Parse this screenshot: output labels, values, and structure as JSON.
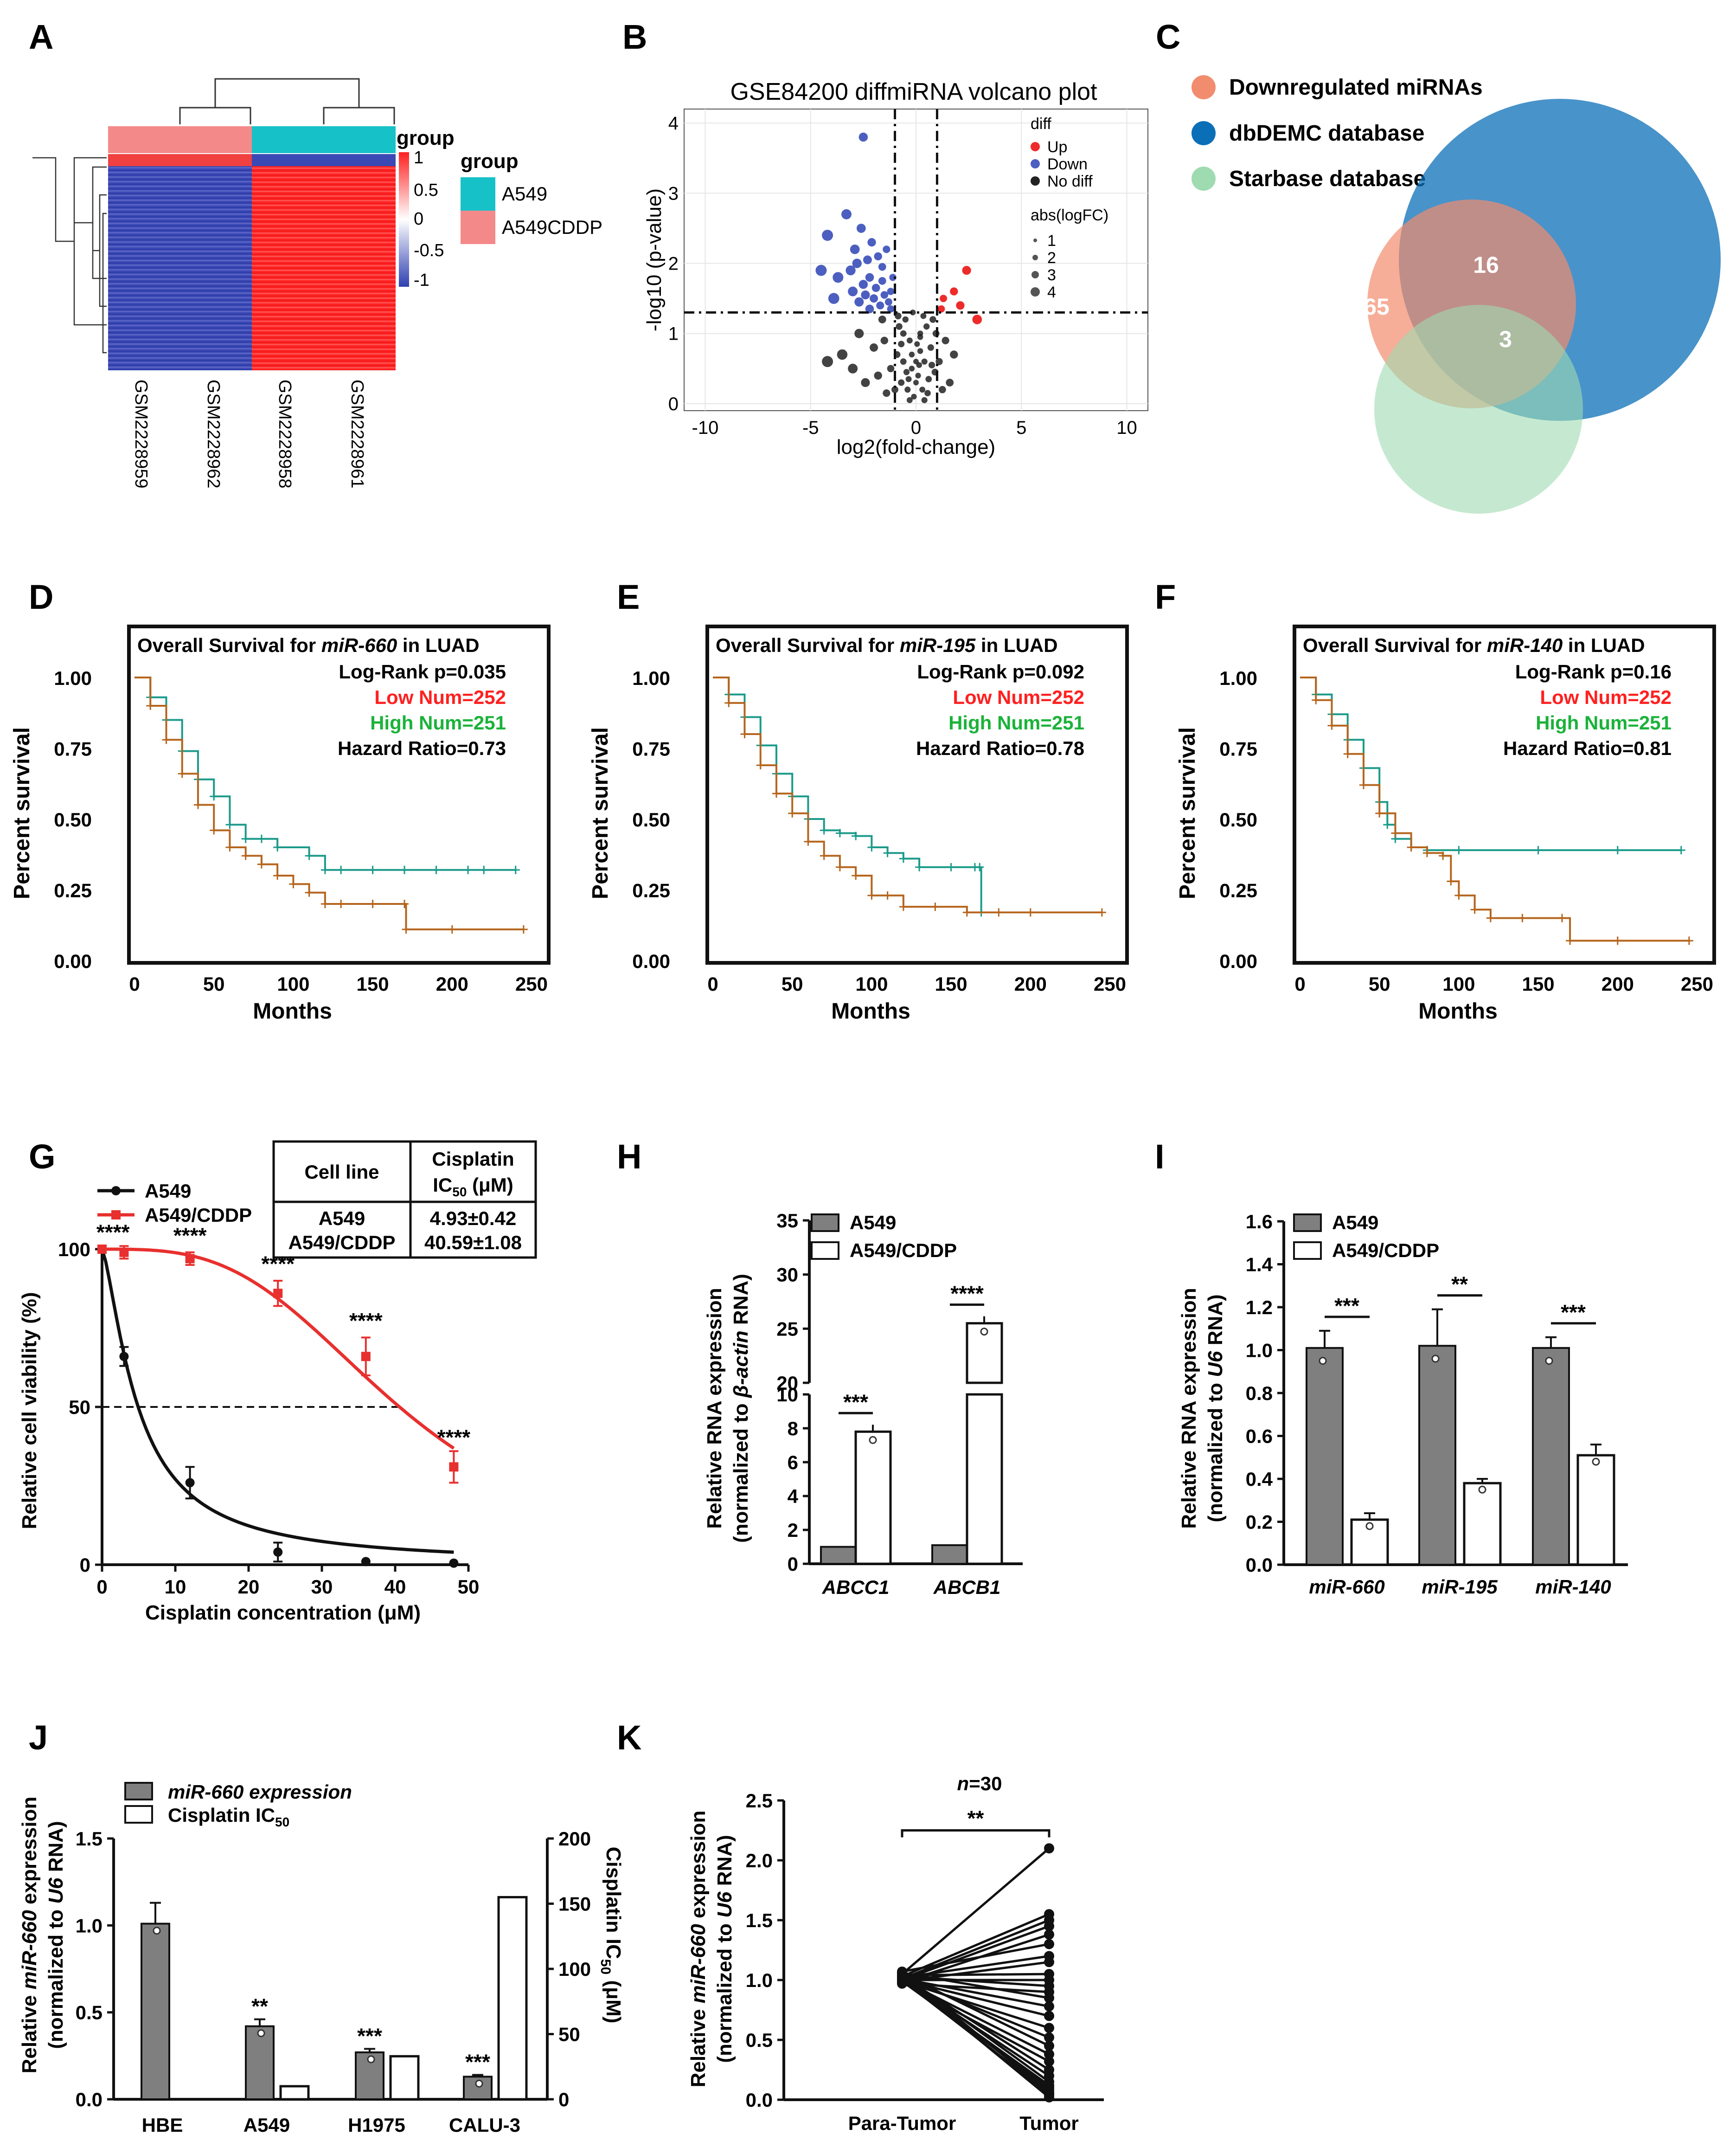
{
  "colors": {
    "a549": "#17c1c8",
    "cddp": "#f4898a",
    "heat_red": "#ff2020",
    "heat_blue": "#2e3fb0",
    "up": "#ee2b2b",
    "down": "#4c5fc0",
    "nodiff": "#222222",
    "venn_down": "#f28c6e",
    "venn_dbdemc": "#0b6fb8",
    "venn_star": "#9fdbb0",
    "km_low": "#b5651d",
    "km_high": "#1b9a8a",
    "low_text": "#ff2020",
    "high_text": "#1bb23a",
    "bar_grey": "#7f7f7f",
    "red_curve": "#e8302e"
  },
  "panels": {
    "A": "A",
    "B": "B",
    "C": "C",
    "D": "D",
    "E": "E",
    "F": "F",
    "G": "G",
    "H": "H",
    "I": "I",
    "J": "J",
    "K": "K"
  },
  "panel_a": {
    "legend_title": "group",
    "scale_title": "group",
    "scale_ticks": [
      "1",
      "0.5",
      "0",
      "-0.5",
      "-1"
    ],
    "groups": [
      "A549",
      "A549CDDP"
    ],
    "samples": [
      "GSM2228959",
      "GSM2228962",
      "GSM2228958",
      "GSM2228961"
    ]
  },
  "chart_data": [
    {
      "id": "B",
      "type": "scatter",
      "title": "GSE84200 diffmiRNA volcano plot",
      "xlabel": "log2(fold-change)",
      "ylabel": "-log10 (p-value)",
      "xlim": [
        -11,
        11
      ],
      "ylim": [
        -0.1,
        4.2
      ],
      "xticks": [
        "-10",
        "-5",
        "0",
        "5",
        "10"
      ],
      "yticks": [
        "0",
        "1",
        "2",
        "3",
        "4"
      ],
      "legend_diff_title": "diff",
      "legend_diff": [
        "Up",
        "Down",
        "No diff"
      ],
      "legend_size_title": "abs(logFC)",
      "legend_size": [
        "1",
        "2",
        "3",
        "4"
      ],
      "thresholds": {
        "x": [
          -1,
          1
        ],
        "y": 1.3
      },
      "up": [
        [
          1.3,
          1.5
        ],
        [
          1.8,
          1.6
        ],
        [
          2.4,
          1.9
        ],
        [
          2.1,
          1.4
        ],
        [
          2.9,
          1.2
        ],
        [
          1.2,
          1.35
        ]
      ],
      "down": [
        [
          -2.5,
          3.8
        ],
        [
          -3.3,
          2.7
        ],
        [
          -2.6,
          2.5
        ],
        [
          -4.2,
          2.4
        ],
        [
          -2.1,
          2.3
        ],
        [
          -1.8,
          2.1
        ],
        [
          -2.8,
          2.0
        ],
        [
          -3.1,
          1.9
        ],
        [
          -4.5,
          1.9
        ],
        [
          -3.7,
          1.8
        ],
        [
          -2.2,
          1.8
        ],
        [
          -1.6,
          1.75
        ],
        [
          -2.5,
          1.7
        ],
        [
          -1.9,
          1.65
        ],
        [
          -3.0,
          1.6
        ],
        [
          -2.4,
          1.55
        ],
        [
          -1.5,
          1.55
        ],
        [
          -2.0,
          1.5
        ],
        [
          -1.3,
          1.45
        ],
        [
          -2.7,
          1.45
        ],
        [
          -1.7,
          1.4
        ],
        [
          -1.2,
          1.35
        ],
        [
          -2.2,
          1.35
        ],
        [
          -3.9,
          1.5
        ],
        [
          -1.1,
          1.8
        ],
        [
          -1.4,
          2.2
        ],
        [
          -2.9,
          2.2
        ],
        [
          -1.6,
          1.95
        ],
        [
          -2.3,
          2.05
        ],
        [
          -1.2,
          1.6
        ]
      ],
      "nodiff": [
        [
          -4.2,
          0.6
        ],
        [
          -3.0,
          0.5
        ],
        [
          -2.0,
          0.8
        ],
        [
          -1.5,
          0.9
        ],
        [
          -0.8,
          1.1
        ],
        [
          -0.5,
          1.2
        ],
        [
          -0.3,
          0.9
        ],
        [
          0.2,
          1.0
        ],
        [
          0.5,
          1.1
        ],
        [
          0.8,
          1.2
        ],
        [
          -0.9,
          0.7
        ],
        [
          -0.6,
          0.6
        ],
        [
          -0.2,
          0.5
        ],
        [
          0.1,
          0.4
        ],
        [
          0.4,
          0.6
        ],
        [
          0.7,
          0.8
        ],
        [
          -0.7,
          0.3
        ],
        [
          -0.4,
          0.2
        ],
        [
          0.3,
          0.2
        ],
        [
          0.6,
          0.35
        ],
        [
          -1.2,
          0.5
        ],
        [
          1.1,
          0.6
        ],
        [
          1.4,
          0.9
        ],
        [
          -1.8,
          0.4
        ],
        [
          -2.4,
          0.3
        ],
        [
          -0.1,
          0.1
        ],
        [
          0.0,
          0.3
        ],
        [
          -0.2,
          0.7
        ],
        [
          0.2,
          0.75
        ],
        [
          -0.6,
          1.0
        ],
        [
          0.9,
          0.45
        ],
        [
          1.6,
          0.3
        ],
        [
          -1.0,
          0.2
        ],
        [
          -0.3,
          0.05
        ],
        [
          0.4,
          0.05
        ],
        [
          0.15,
          0.55
        ],
        [
          -0.45,
          0.45
        ],
        [
          0.55,
          0.15
        ],
        [
          -0.85,
          1.25
        ],
        [
          0.95,
          1.0
        ],
        [
          -1.4,
          0.15
        ],
        [
          1.25,
          0.2
        ],
        [
          -3.5,
          0.7
        ],
        [
          -2.7,
          1.0
        ],
        [
          0.05,
          0.85
        ],
        [
          -0.15,
          1.3
        ],
        [
          0.35,
          1.25
        ],
        [
          -0.7,
          0.85
        ],
        [
          0.75,
          0.55
        ],
        [
          -0.35,
          0.35
        ],
        [
          1.8,
          0.7
        ],
        [
          -1.6,
          1.2
        ],
        [
          0.0,
          0.6
        ],
        [
          0.2,
          0.95
        ]
      ]
    },
    {
      "id": "C",
      "type": "venn",
      "sets": [
        "Downregulated miRNAs",
        "dbDEMC database",
        "Starbase database"
      ],
      "regions": {
        "down_only": "65",
        "down_dbdemc": "16",
        "all_three": "3"
      }
    },
    {
      "id": "D",
      "type": "line",
      "title_prefix": "Overall Survival for ",
      "mirna": "miR-660",
      "title_suffix": " in LUAD",
      "stats": {
        "logrank": "Log-Rank p=0.035",
        "low": "Low Num=252",
        "high": "High Num=251",
        "hr": "Hazard Ratio=0.73"
      },
      "xlabel": "Months",
      "ylabel": "Percent survival",
      "xlim": [
        0,
        250
      ],
      "ylim": [
        0,
        1
      ],
      "xticks": [
        "0",
        "50",
        "100",
        "150",
        "200",
        "250"
      ],
      "yticks": [
        "0.00",
        "0.25",
        "0.50",
        "0.75",
        "1.00"
      ],
      "series": [
        {
          "name": "High",
          "x": [
            0,
            10,
            20,
            30,
            40,
            50,
            60,
            70,
            80,
            90,
            110,
            120,
            130,
            150,
            170,
            190,
            210,
            220,
            240
          ],
          "y": [
            1.0,
            0.93,
            0.85,
            0.74,
            0.64,
            0.58,
            0.48,
            0.43,
            0.43,
            0.4,
            0.37,
            0.32,
            0.32,
            0.32,
            0.32,
            0.32,
            0.32,
            0.32,
            0.32
          ]
        },
        {
          "name": "Low",
          "x": [
            0,
            10,
            20,
            30,
            40,
            50,
            60,
            70,
            80,
            90,
            100,
            110,
            120,
            130,
            150,
            170,
            171,
            200,
            245
          ],
          "y": [
            1.0,
            0.9,
            0.78,
            0.66,
            0.55,
            0.46,
            0.4,
            0.37,
            0.34,
            0.3,
            0.27,
            0.24,
            0.2,
            0.2,
            0.2,
            0.2,
            0.11,
            0.11,
            0.11
          ]
        }
      ]
    },
    {
      "id": "E",
      "type": "line",
      "title_prefix": "Overall Survival for ",
      "mirna": "miR-195",
      "title_suffix": " in LUAD",
      "stats": {
        "logrank": "Log-Rank p=0.092",
        "low": "Low Num=252",
        "high": "High Num=251",
        "hr": "Hazard Ratio=0.78"
      },
      "xlabel": "Months",
      "ylabel": "Percent survival",
      "xlim": [
        0,
        250
      ],
      "ylim": [
        0,
        1
      ],
      "xticks": [
        "0",
        "50",
        "100",
        "150",
        "200",
        "250"
      ],
      "yticks": [
        "0.00",
        "0.25",
        "0.50",
        "0.75",
        "1.00"
      ],
      "series": [
        {
          "name": "High",
          "x": [
            0,
            10,
            20,
            30,
            40,
            50,
            60,
            70,
            80,
            90,
            100,
            110,
            120,
            130,
            150,
            165,
            168,
            169
          ],
          "y": [
            1.0,
            0.94,
            0.86,
            0.76,
            0.66,
            0.58,
            0.5,
            0.46,
            0.45,
            0.44,
            0.4,
            0.38,
            0.36,
            0.33,
            0.33,
            0.33,
            0.33,
            0.17
          ]
        },
        {
          "name": "Low",
          "x": [
            0,
            10,
            20,
            30,
            40,
            50,
            60,
            70,
            80,
            90,
            100,
            110,
            120,
            140,
            160,
            180,
            200,
            245
          ],
          "y": [
            1.0,
            0.91,
            0.8,
            0.69,
            0.59,
            0.52,
            0.42,
            0.37,
            0.33,
            0.3,
            0.23,
            0.23,
            0.19,
            0.19,
            0.17,
            0.17,
            0.17,
            0.17
          ]
        }
      ]
    },
    {
      "id": "F",
      "type": "line",
      "title_prefix": "Overall Survival for ",
      "mirna": "miR-140",
      "title_suffix": " in LUAD",
      "stats": {
        "logrank": "Log-Rank p=0.16",
        "low": "Low Num=252",
        "high": "High Num=251",
        "hr": "Hazard Ratio=0.81"
      },
      "xlabel": "Months",
      "ylabel": "Percent survival",
      "xlim": [
        0,
        250
      ],
      "ylim": [
        0,
        1
      ],
      "xticks": [
        "0",
        "50",
        "100",
        "150",
        "200",
        "250"
      ],
      "yticks": [
        "0.00",
        "0.25",
        "0.50",
        "0.75",
        "1.00"
      ],
      "series": [
        {
          "name": "High",
          "x": [
            0,
            10,
            20,
            30,
            40,
            50,
            55,
            60,
            70,
            80,
            100,
            150,
            200,
            240
          ],
          "y": [
            1.0,
            0.94,
            0.87,
            0.78,
            0.68,
            0.56,
            0.48,
            0.43,
            0.4,
            0.39,
            0.39,
            0.39,
            0.39,
            0.39
          ]
        },
        {
          "name": "Low",
          "x": [
            0,
            10,
            20,
            30,
            40,
            50,
            60,
            70,
            80,
            90,
            95,
            100,
            110,
            120,
            140,
            165,
            170,
            200,
            245
          ],
          "y": [
            1.0,
            0.92,
            0.83,
            0.73,
            0.62,
            0.52,
            0.45,
            0.4,
            0.38,
            0.37,
            0.28,
            0.23,
            0.18,
            0.15,
            0.15,
            0.15,
            0.07,
            0.07,
            0.07
          ]
        }
      ]
    },
    {
      "id": "G",
      "type": "line",
      "xlabel": "Cisplatin concentration (μM)",
      "ylabel": "Relative cell viability (%)",
      "xlim": [
        0,
        50
      ],
      "ylim": [
        0,
        100
      ],
      "xticks": [
        "0",
        "10",
        "20",
        "30",
        "40",
        "50"
      ],
      "yticks": [
        "0",
        "50",
        "100"
      ],
      "legend": [
        "A549",
        "A549/CDDP"
      ],
      "x": [
        0,
        3,
        12,
        24,
        36,
        48
      ],
      "series": [
        {
          "name": "A549",
          "values": [
            100,
            66,
            26,
            4,
            1,
            0.5
          ],
          "err": [
            0,
            3,
            5,
            3,
            0,
            0
          ]
        },
        {
          "name": "A549/CDDP",
          "values": [
            100,
            99,
            97,
            86,
            66,
            31
          ],
          "err": [
            0,
            2,
            2,
            4,
            6,
            5
          ]
        }
      ],
      "sig_labels": [
        "****",
        "****",
        "****",
        "****",
        "****"
      ],
      "table": {
        "h1": "Cell line",
        "h2a": "Cisplatin",
        "h2b": "IC",
        "h2sub": "50",
        "h2c": " (μM)",
        "r1a": "A549",
        "r1b": "4.93±0.42",
        "r2a": "A549/CDDP",
        "r2b": "40.59±1.08"
      }
    },
    {
      "id": "H",
      "type": "bar",
      "ylabel1": "Relative RNA expression",
      "ylabel2": "(normalized to ",
      "ylabel_gene": "β-actin",
      "ylabel3": " RNA)",
      "categories": [
        "ABCC1",
        "ABCB1"
      ],
      "legend": [
        "A549",
        "A549/CDDP"
      ],
      "yticks_low": [
        "0",
        "2",
        "4",
        "6",
        "8",
        "10"
      ],
      "yticks_high": [
        "20",
        "25",
        "30",
        "35"
      ],
      "series": [
        {
          "name": "A549",
          "values": [
            1.0,
            1.1
          ]
        },
        {
          "name": "A549/CDDP",
          "values": [
            7.8,
            25.5
          ]
        }
      ],
      "sig": [
        "***",
        "****"
      ]
    },
    {
      "id": "I",
      "type": "bar",
      "ylabel1": "Relative RNA expression",
      "ylabel2": "(normalized to ",
      "ylabel_gene": "U6",
      "ylabel3": " RNA)",
      "categories": [
        "miR-660",
        "miR-195",
        "miR-140"
      ],
      "legend": [
        "A549",
        "A549/CDDP"
      ],
      "ylim": [
        0,
        1.6
      ],
      "yticks": [
        "0.0",
        "0.2",
        "0.4",
        "0.6",
        "0.8",
        "1.0",
        "1.2",
        "1.4",
        "1.6"
      ],
      "series": [
        {
          "name": "A549",
          "values": [
            1.01,
            1.02,
            1.01
          ],
          "err": [
            0.08,
            0.17,
            0.05
          ]
        },
        {
          "name": "A549/CDDP",
          "values": [
            0.21,
            0.38,
            0.51
          ],
          "err": [
            0.03,
            0.02,
            0.05
          ]
        }
      ],
      "sig": [
        "***",
        "**",
        "***"
      ]
    },
    {
      "id": "J",
      "type": "bar",
      "ylabel1a": "Relative ",
      "ylabel1b": "miR-660",
      "ylabel1c": " expression",
      "ylabel2": "(normalized to ",
      "ylabel_gene": "U6",
      "ylabel3": " RNA)",
      "y2label_a": "Cisplatin IC",
      "y2label_sub": "50",
      "y2label_b": " (μM)",
      "categories": [
        "HBE",
        "A549",
        "H1975",
        "CALU-3"
      ],
      "legend_mir": "miR-660 expression",
      "legend_ic": "Cisplatin IC",
      "legend_ic_sub": "50",
      "ylim": [
        0,
        1.5
      ],
      "y2lim": [
        0,
        200
      ],
      "yticks": [
        "0.0",
        "0.5",
        "1.0",
        "1.5"
      ],
      "y2ticks": [
        "0",
        "50",
        "100",
        "150",
        "200"
      ],
      "series": [
        {
          "name": "miR-660 expression",
          "values": [
            1.01,
            0.42,
            0.27,
            0.13
          ],
          "err": [
            0.12,
            0.04,
            0.02,
            0.01
          ]
        },
        {
          "name": "Cisplatin IC50",
          "values": [
            null,
            10,
            33,
            155
          ]
        }
      ],
      "sig": [
        "",
        "**",
        "***",
        "***"
      ]
    },
    {
      "id": "K",
      "type": "line",
      "n_label": "n",
      "n_value": "=30",
      "ylabel1a": "Relative ",
      "ylabel1b": "miR-660",
      "ylabel1c": " expression",
      "ylabel2": "(normalized to ",
      "ylabel_gene": "U6",
      "ylabel3": " RNA)",
      "categories": [
        "Para-Tumor",
        "Tumor"
      ],
      "ylim": [
        0,
        2.5
      ],
      "yticks": [
        "0.0",
        "0.5",
        "1.0",
        "1.5",
        "2.0",
        "2.5"
      ],
      "sig": "**",
      "para": [
        1.05,
        1.03,
        1.01,
        1.0,
        0.98,
        1.07,
        1.02,
        0.99,
        1.04,
        1.0,
        1.03,
        0.97,
        1.06,
        1.01,
        1.0,
        0.99,
        1.02,
        1.05,
        1.0,
        0.98,
        1.03,
        1.01,
        1.04,
        1.0,
        0.99,
        1.02,
        1.06,
        1.0,
        1.01,
        1.03
      ],
      "tumor": [
        2.1,
        1.55,
        1.5,
        1.45,
        1.38,
        1.3,
        1.2,
        1.15,
        1.05,
        1.0,
        0.95,
        0.9,
        0.85,
        0.78,
        0.7,
        0.6,
        0.52,
        0.45,
        0.38,
        0.32,
        0.25,
        0.2,
        0.15,
        0.12,
        0.1,
        0.08,
        0.06,
        0.05,
        0.04,
        0.02
      ]
    }
  ]
}
